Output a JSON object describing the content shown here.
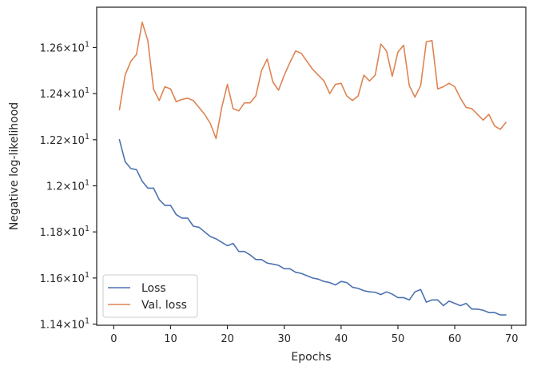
{
  "chart_data": {
    "type": "line",
    "xlabel": "Epochs",
    "ylabel": "Negative log-likelihood",
    "xlim": [
      -3,
      72.5
    ],
    "ylim": [
      11.395,
      12.775
    ],
    "x_ticks": [
      0,
      10,
      20,
      30,
      40,
      50,
      60,
      70
    ],
    "x_tick_labels": [
      "0",
      "10",
      "20",
      "30",
      "40",
      "50",
      "60",
      "70"
    ],
    "y_ticks": [
      11.4,
      11.6,
      11.8,
      12.0,
      12.2,
      12.4,
      12.6
    ],
    "y_tick_labels": [
      "1.14",
      "1.16",
      "1.18",
      "1.2",
      "1.22",
      "1.24",
      "1.26"
    ],
    "y_tick_suffix": "×10",
    "y_tick_exponent": "1",
    "grid": false,
    "legend_position": "lower-left",
    "x": [
      1,
      2,
      3,
      4,
      5,
      6,
      7,
      8,
      9,
      10,
      11,
      12,
      13,
      14,
      15,
      16,
      17,
      18,
      19,
      20,
      21,
      22,
      23,
      24,
      25,
      26,
      27,
      28,
      29,
      30,
      31,
      32,
      33,
      34,
      35,
      36,
      37,
      38,
      39,
      40,
      41,
      42,
      43,
      44,
      45,
      46,
      47,
      48,
      49,
      50,
      51,
      52,
      53,
      54,
      55,
      56,
      57,
      58,
      59,
      60,
      61,
      62,
      63,
      64,
      65,
      66,
      67,
      68,
      69
    ],
    "series": [
      {
        "name": "Loss",
        "color": "#4c72b0",
        "values": [
          12.2,
          12.105,
          12.075,
          12.07,
          12.02,
          11.99,
          11.99,
          11.94,
          11.915,
          11.915,
          11.875,
          11.86,
          11.86,
          11.825,
          11.82,
          11.8,
          11.78,
          11.77,
          11.755,
          11.74,
          11.75,
          11.715,
          11.715,
          11.7,
          11.68,
          11.68,
          11.665,
          11.66,
          11.655,
          11.64,
          11.64,
          11.625,
          11.62,
          11.61,
          11.6,
          11.595,
          11.585,
          11.58,
          11.57,
          11.585,
          11.58,
          11.56,
          11.555,
          11.545,
          11.54,
          11.538,
          11.528,
          11.54,
          11.53,
          11.515,
          11.515,
          11.505,
          11.54,
          11.55,
          11.495,
          11.505,
          11.505,
          11.48,
          11.5,
          11.49,
          11.48,
          11.49,
          11.465,
          11.465,
          11.46,
          11.45,
          11.45,
          11.44,
          11.44
        ]
      },
      {
        "name": "Val. loss",
        "color": "#dd8452",
        "values": [
          12.33,
          12.48,
          12.54,
          12.57,
          12.71,
          12.63,
          12.42,
          12.37,
          12.43,
          12.42,
          12.365,
          12.375,
          12.38,
          12.37,
          12.34,
          12.31,
          12.27,
          12.205,
          12.34,
          12.44,
          12.335,
          12.325,
          12.36,
          12.36,
          12.39,
          12.5,
          12.55,
          12.45,
          12.415,
          12.48,
          12.535,
          12.585,
          12.575,
          12.54,
          12.505,
          12.48,
          12.455,
          12.4,
          12.44,
          12.445,
          12.39,
          12.37,
          12.39,
          12.48,
          12.455,
          12.48,
          12.615,
          12.585,
          12.475,
          12.58,
          12.61,
          12.435,
          12.385,
          12.435,
          12.625,
          12.63,
          12.42,
          12.43,
          12.445,
          12.43,
          12.38,
          12.34,
          12.335,
          12.31,
          12.285,
          12.31,
          12.26,
          12.245,
          12.275
        ]
      }
    ]
  }
}
